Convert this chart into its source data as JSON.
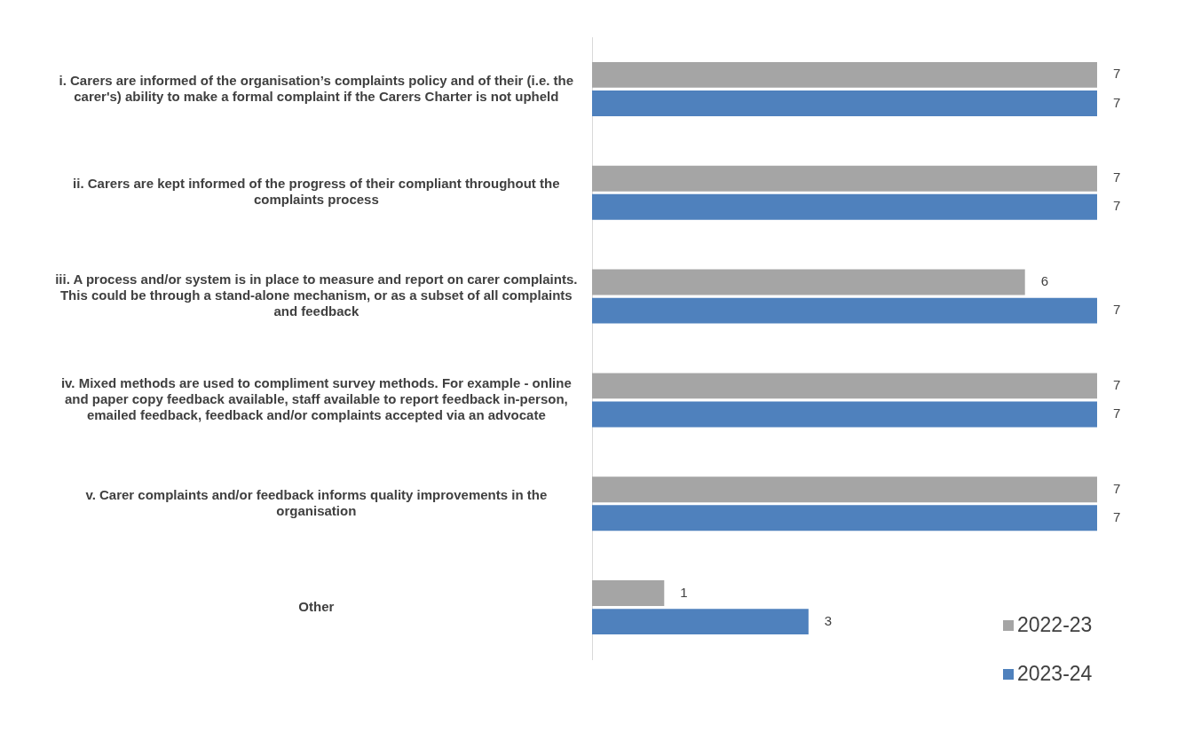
{
  "chart_data": {
    "type": "bar",
    "orientation": "horizontal",
    "categories": [
      "i. Carers are informed of the organisation’s complaints policy and of their (i.e. the carer's) ability to make a formal complaint if the Carers Charter is not upheld",
      "ii. Carers are kept informed of the progress of their compliant throughout the complaints process",
      "iii. A process and/or system is in place to measure and report on carer complaints. This could be through a stand-alone mechanism, or as a subset of all complaints and feedback",
      "iv. Mixed methods are used to compliment survey methods. For example - online and paper copy feedback available, staff available to report feedback in-person, emailed feedback, feedback and/or complaints accepted via an advocate",
      "v. Carer complaints and/or feedback informs quality improvements in the organisation",
      "Other"
    ],
    "series": [
      {
        "name": "2022-23",
        "color": "#a5a5a5",
        "values": [
          7,
          7,
          6,
          7,
          7,
          1
        ]
      },
      {
        "name": "2023-24",
        "color": "#4f81bd",
        "values": [
          7,
          7,
          7,
          7,
          7,
          3
        ]
      }
    ],
    "data_labels": true,
    "legend": "bottom right",
    "tick_labels": "y"
  }
}
